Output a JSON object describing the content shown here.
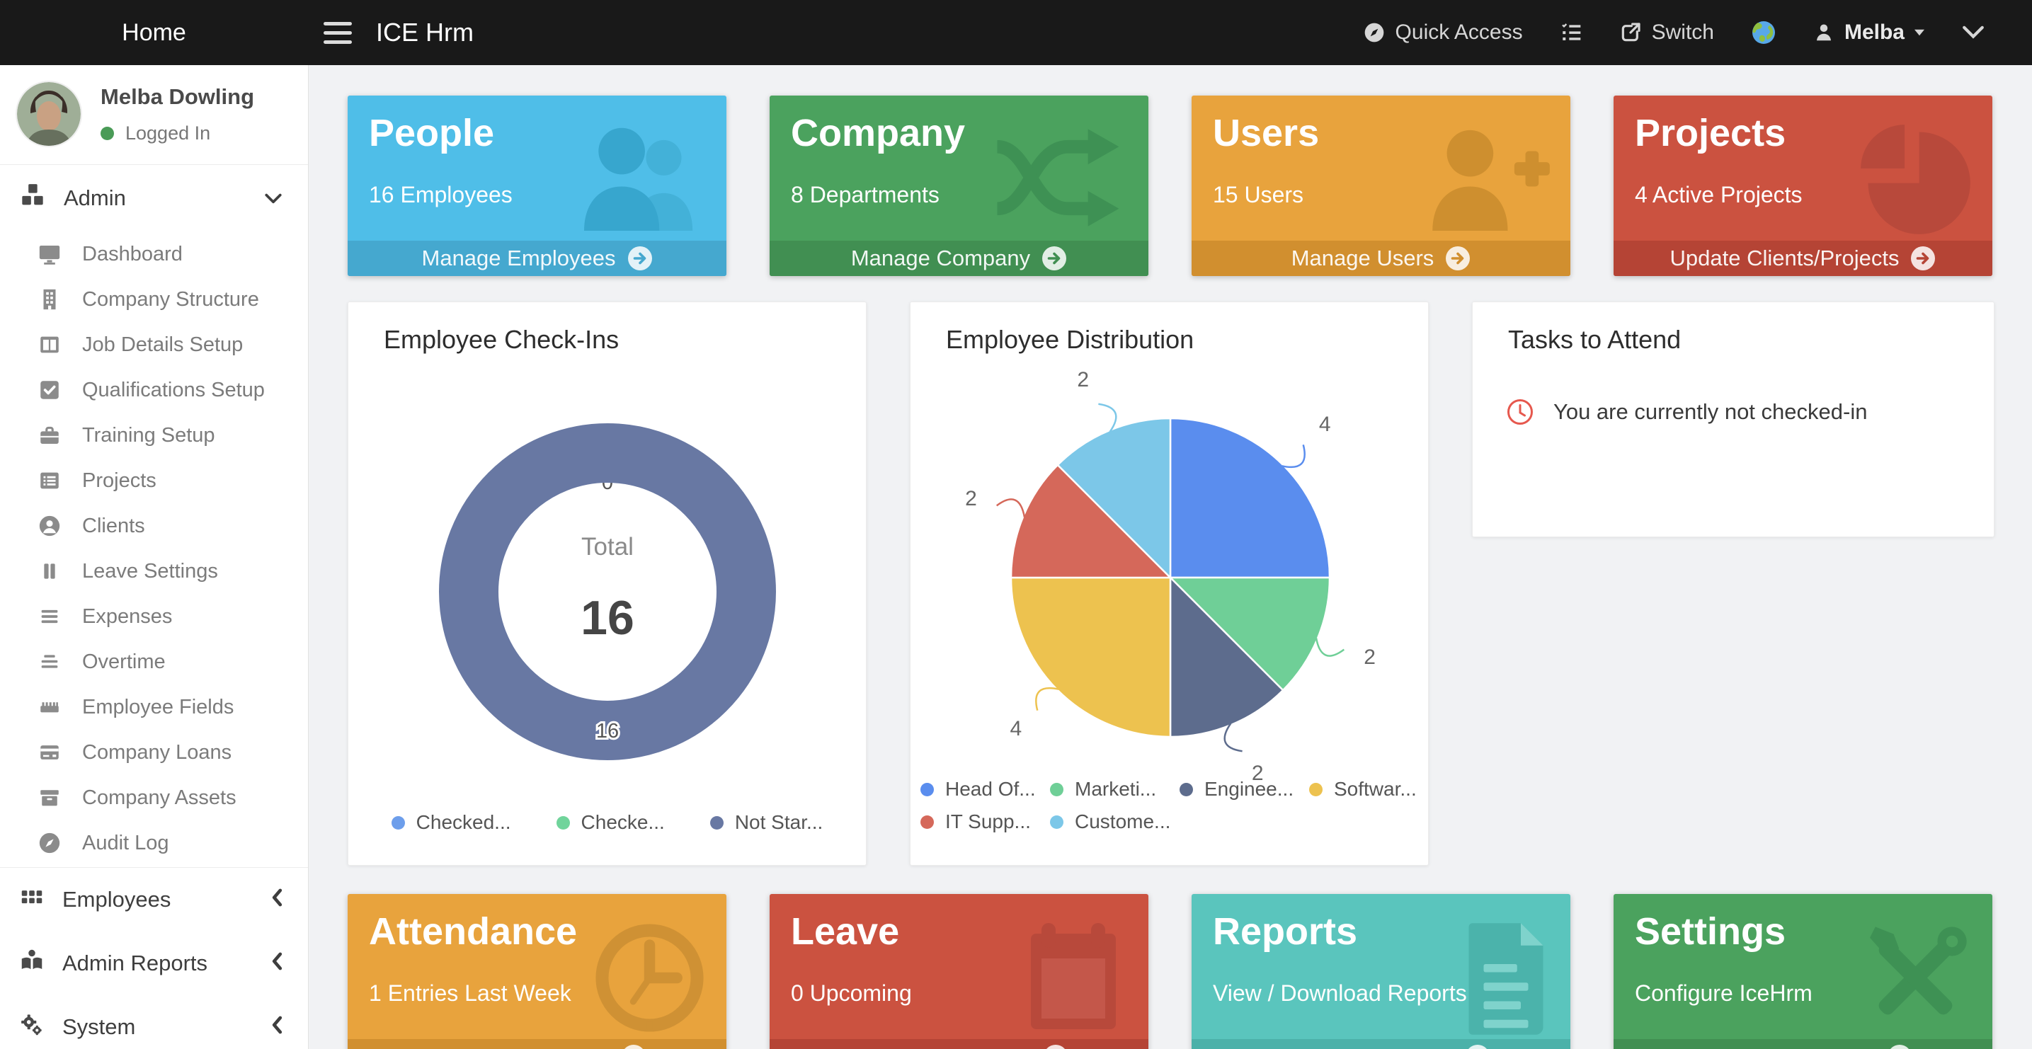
{
  "topbar": {
    "home_label": "Home",
    "brand": "ICE Hrm",
    "quick_access_label": "Quick Access",
    "switch_label": "Switch",
    "user_name": "Melba"
  },
  "sidebar": {
    "profile": {
      "name": "Melba Dowling",
      "status": "Logged In",
      "status_color": "#4A9B57"
    },
    "admin": {
      "label": "Admin"
    },
    "admin_items": [
      {
        "label": "Dashboard"
      },
      {
        "label": "Company Structure"
      },
      {
        "label": "Job Details Setup"
      },
      {
        "label": "Qualifications Setup"
      },
      {
        "label": "Training Setup"
      },
      {
        "label": "Projects"
      },
      {
        "label": "Clients"
      },
      {
        "label": "Leave Settings"
      },
      {
        "label": "Expenses"
      },
      {
        "label": "Overtime"
      },
      {
        "label": "Employee Fields"
      },
      {
        "label": "Company Loans"
      },
      {
        "label": "Company Assets"
      },
      {
        "label": "Audit Log"
      }
    ],
    "sections": [
      {
        "label": "Employees"
      },
      {
        "label": "Admin Reports"
      },
      {
        "label": "System"
      }
    ]
  },
  "cards": {
    "people": {
      "title": "People",
      "subtitle": "16 Employees",
      "action": "Manage Employees",
      "color": "#4FBEE8",
      "footer_color": "#45A8CF"
    },
    "company": {
      "title": "Company",
      "subtitle": "8 Departments",
      "action": "Manage Company",
      "color": "#4BA25E",
      "footer_color": "#418F52"
    },
    "users": {
      "title": "Users",
      "subtitle": "15 Users",
      "action": "Manage Users",
      "color": "#E8A33D",
      "footer_color": "#D18F2F"
    },
    "projects": {
      "title": "Projects",
      "subtitle": "4 Active Projects",
      "action": "Update Clients/Projects",
      "color": "#CB5240",
      "footer_color": "#B54435"
    },
    "attendance": {
      "title": "Attendance",
      "subtitle": "1 Entries Last Week",
      "color": "#E8A33D",
      "footer_color": "#D18F2F"
    },
    "leave": {
      "title": "Leave",
      "subtitle": "0 Upcoming",
      "color": "#CB5240",
      "footer_color": "#B54435"
    },
    "reports": {
      "title": "Reports",
      "subtitle": "View / Download Reports",
      "color": "#5AC5BD",
      "footer_color": "#4BB1A9"
    },
    "settings": {
      "title": "Settings",
      "subtitle": "Configure IceHrm",
      "color": "#4BA25E",
      "footer_color": "#418F52"
    }
  },
  "tasks": {
    "title": "Tasks to Attend",
    "message": "You are currently not checked-in",
    "icon_color": "#E6584E"
  },
  "chart_data": [
    {
      "type": "donut",
      "title": "Employee Check-Ins",
      "center_label": "Total",
      "total": 16,
      "legend_position": "bottom",
      "segments": [
        {
          "label": "Checked...",
          "value": 0,
          "color": "#6D9EEB"
        },
        {
          "label": "Checke...",
          "value": 0,
          "color": "#70D49B"
        },
        {
          "label": "Not Star...",
          "value": 16,
          "color": "#6878A3"
        }
      ]
    },
    {
      "type": "pie",
      "title": "Employee Distribution",
      "legend_position": "bottom",
      "segments": [
        {
          "label": "Head Of...",
          "value": 4,
          "color": "#5A8DEE"
        },
        {
          "label": "Marketi...",
          "value": 2,
          "color": "#6FCF97"
        },
        {
          "label": "Enginee...",
          "value": 2,
          "color": "#5D6C8D"
        },
        {
          "label": "Softwar...",
          "value": 4,
          "color": "#EDC24F"
        },
        {
          "label": "IT Supp...",
          "value": 2,
          "color": "#D5685A"
        },
        {
          "label": "Custome...",
          "value": 2,
          "color": "#7CC7E8"
        }
      ]
    }
  ]
}
